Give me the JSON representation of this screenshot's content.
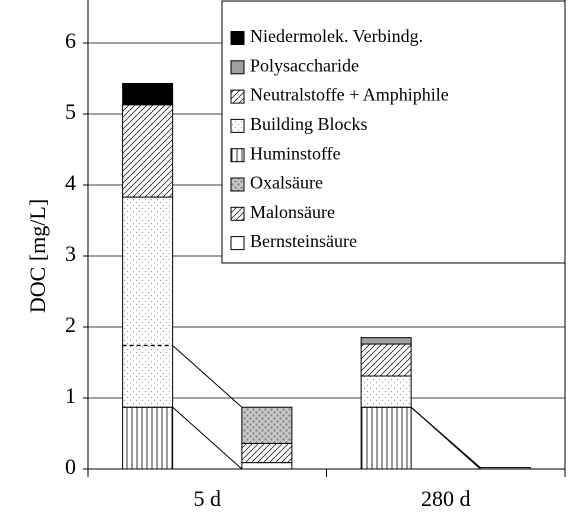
{
  "chart_data": {
    "type": "stacked-bar",
    "y_label": "DOC [mg/L]",
    "categories": [
      "5 d",
      null,
      "280 d",
      null
    ],
    "series": [
      {
        "name": "Bernsteinsäure",
        "color": "#ffffff",
        "values": [
          null,
          0.09,
          null,
          0.02
        ]
      },
      {
        "name": "Malonsäure",
        "color": "#ffffff",
        "values": [
          null,
          0.27,
          null,
          null
        ]
      },
      {
        "name": "Oxalsäure",
        "color": "#d0d0d0",
        "values": [
          null,
          0.51,
          null,
          null
        ]
      },
      {
        "name": "Huminstoffe",
        "color": "#ffffff",
        "values": [
          0.87,
          null,
          0.87,
          null
        ]
      },
      {
        "name": "Building Blocks",
        "color": "#ffffff",
        "values": [
          2.96,
          null,
          0.44,
          null
        ]
      },
      {
        "name": "Neutralstoffe + Amphiphile",
        "color": "#ffffff",
        "values": [
          1.3,
          null,
          0.45,
          null
        ]
      },
      {
        "name": "Polysaccharide",
        "color": "#a0a0a0",
        "values": [
          null,
          null,
          0.09,
          null
        ]
      },
      {
        "name": "Niedermolek. Verbindg.",
        "color": "#000000",
        "values": [
          0.3,
          null,
          null,
          null
        ]
      }
    ],
    "ylim": [
      0,
      6
    ],
    "yticks": [
      0,
      1,
      2,
      3,
      4,
      5,
      6
    ],
    "grid": true
  }
}
